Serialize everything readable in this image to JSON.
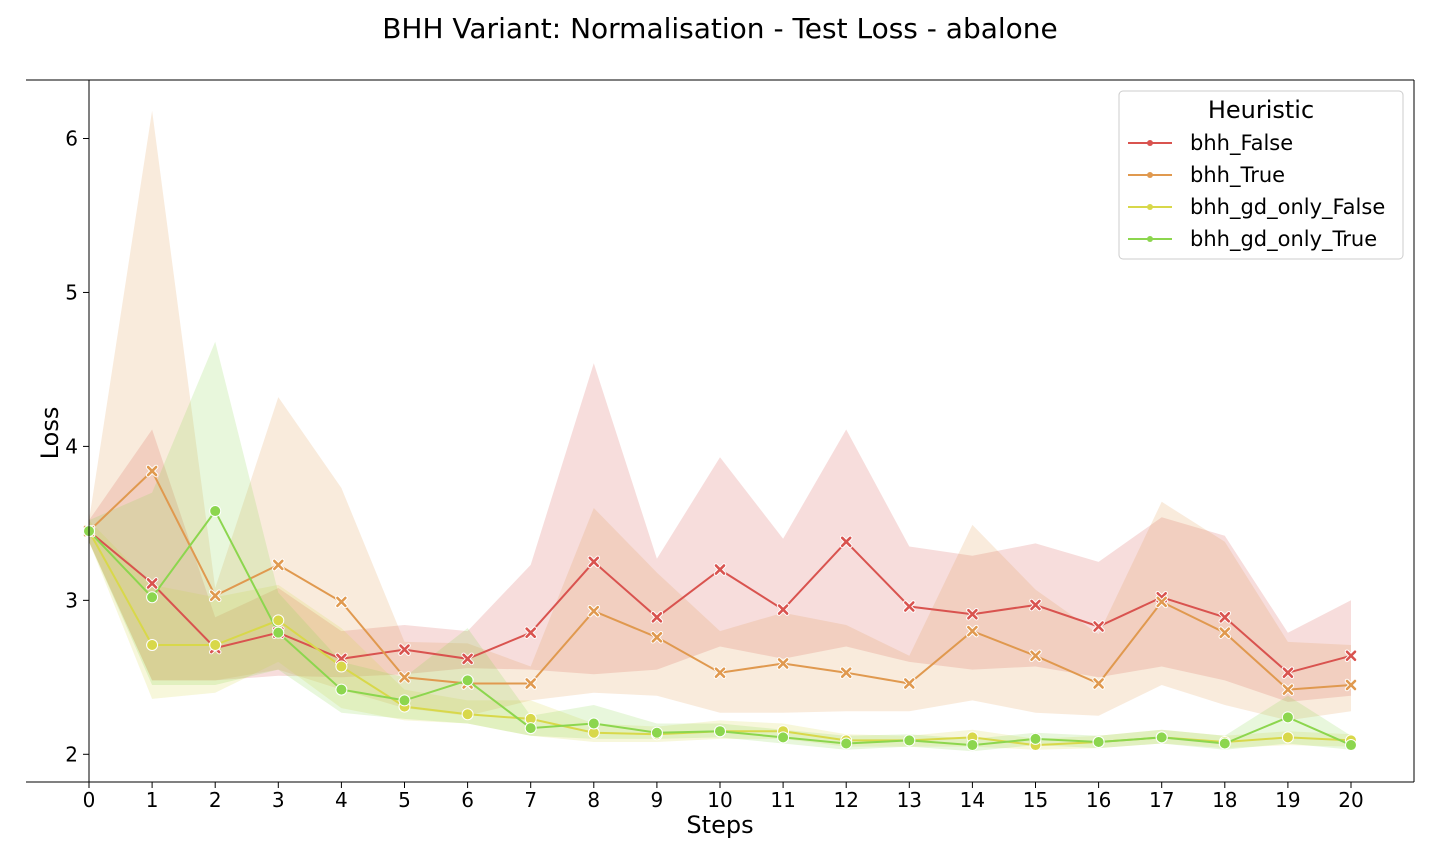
{
  "chart_data": {
    "type": "line",
    "title": "BHH Variant: Normalisation - Test Loss - abalone",
    "xlabel": "Steps",
    "ylabel": "Loss",
    "x": [
      0,
      1,
      2,
      3,
      4,
      5,
      6,
      7,
      8,
      9,
      10,
      11,
      12,
      13,
      14,
      15,
      16,
      17,
      18,
      19,
      20
    ],
    "xlim": [
      -1,
      21
    ],
    "ylim": [
      1.82,
      6.38
    ],
    "yticks": [
      2,
      3,
      4,
      5,
      6
    ],
    "grid": false,
    "legend": {
      "title": "Heuristic",
      "placement": "top-right"
    },
    "series": [
      {
        "name": "bhh_False",
        "color": "#d9534f",
        "marker": "x",
        "values": [
          3.45,
          3.11,
          2.69,
          2.79,
          2.62,
          2.68,
          2.62,
          2.79,
          3.25,
          2.89,
          3.2,
          2.94,
          3.38,
          2.96,
          2.91,
          2.97,
          2.83,
          3.02,
          2.89,
          2.53,
          2.64
        ],
        "lower": [
          3.38,
          2.48,
          2.48,
          2.51,
          2.5,
          2.52,
          2.56,
          2.55,
          2.52,
          2.55,
          2.7,
          2.62,
          2.7,
          2.6,
          2.55,
          2.57,
          2.5,
          2.57,
          2.48,
          2.34,
          2.38
        ],
        "upper": [
          3.52,
          4.11,
          2.89,
          3.08,
          2.8,
          2.84,
          2.8,
          3.23,
          4.54,
          3.27,
          3.93,
          3.4,
          4.11,
          3.35,
          3.29,
          3.37,
          3.25,
          3.54,
          3.42,
          2.79,
          3.0
        ]
      },
      {
        "name": "bhh_True",
        "color": "#e0994f",
        "marker": "x",
        "values": [
          3.45,
          3.84,
          3.03,
          3.23,
          2.99,
          2.5,
          2.46,
          2.46,
          2.93,
          2.76,
          2.53,
          2.59,
          2.53,
          2.46,
          2.8,
          2.64,
          2.46,
          2.99,
          2.79,
          2.42,
          2.45
        ],
        "lower": [
          3.38,
          2.48,
          2.48,
          2.55,
          2.42,
          2.3,
          2.25,
          2.35,
          2.4,
          2.38,
          2.27,
          2.27,
          2.28,
          2.28,
          2.35,
          2.27,
          2.25,
          2.45,
          2.32,
          2.22,
          2.28
        ],
        "upper": [
          3.52,
          6.18,
          3.08,
          4.32,
          3.73,
          2.73,
          2.72,
          2.57,
          3.6,
          3.18,
          2.8,
          2.92,
          2.84,
          2.64,
          3.49,
          3.07,
          2.78,
          3.64,
          3.38,
          2.73,
          2.71
        ]
      },
      {
        "name": "bhh_gd_only_False",
        "color": "#d8d84a",
        "marker": "o",
        "values": [
          3.45,
          2.71,
          2.71,
          2.87,
          2.57,
          2.31,
          2.26,
          2.23,
          2.14,
          2.13,
          2.15,
          2.15,
          2.09,
          2.09,
          2.11,
          2.06,
          2.08,
          2.11,
          2.08,
          2.11,
          2.09
        ],
        "lower": [
          3.38,
          2.36,
          2.4,
          2.6,
          2.3,
          2.22,
          2.2,
          2.12,
          2.08,
          2.08,
          2.1,
          2.1,
          2.05,
          2.05,
          2.05,
          2.03,
          2.04,
          2.07,
          2.04,
          2.06,
          2.05
        ],
        "upper": [
          3.52,
          3.1,
          3.02,
          3.1,
          2.82,
          2.42,
          2.35,
          2.35,
          2.2,
          2.18,
          2.22,
          2.2,
          2.13,
          2.12,
          2.16,
          2.1,
          2.12,
          2.16,
          2.12,
          2.15,
          2.13
        ]
      },
      {
        "name": "bhh_gd_only_True",
        "color": "#8cd64e",
        "marker": "o",
        "values": [
          3.45,
          3.02,
          3.58,
          2.79,
          2.42,
          2.35,
          2.48,
          2.17,
          2.2,
          2.14,
          2.15,
          2.11,
          2.07,
          2.09,
          2.06,
          2.1,
          2.08,
          2.11,
          2.07,
          2.24,
          2.06
        ],
        "lower": [
          3.38,
          2.45,
          2.45,
          2.55,
          2.27,
          2.23,
          2.2,
          2.12,
          2.1,
          2.1,
          2.11,
          2.07,
          2.03,
          2.05,
          2.02,
          2.06,
          2.04,
          2.07,
          2.03,
          2.07,
          2.03
        ],
        "upper": [
          3.52,
          3.7,
          4.68,
          3.05,
          2.6,
          2.5,
          2.82,
          2.25,
          2.32,
          2.2,
          2.2,
          2.16,
          2.12,
          2.13,
          2.1,
          2.14,
          2.12,
          2.16,
          2.12,
          2.38,
          2.12
        ]
      }
    ]
  }
}
